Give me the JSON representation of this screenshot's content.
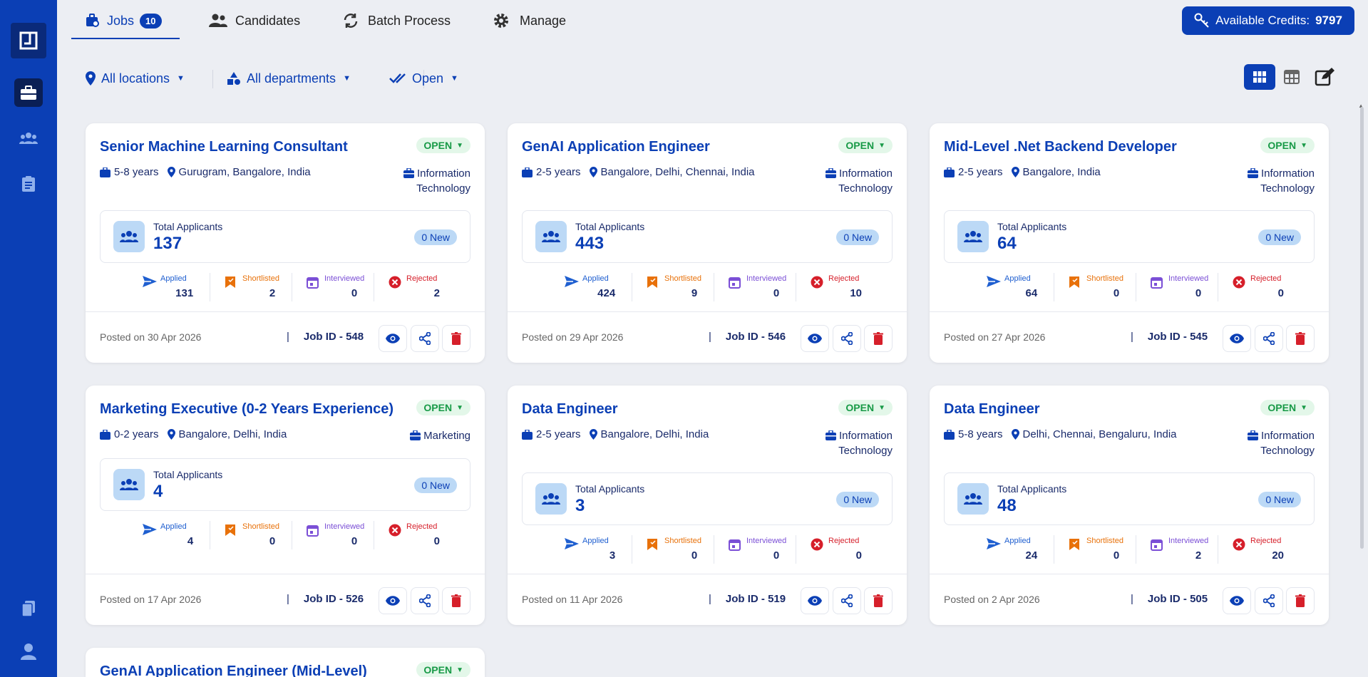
{
  "nav": {
    "tabs": [
      {
        "label": "Jobs",
        "badge": "10"
      },
      {
        "label": "Candidates"
      },
      {
        "label": "Batch Process"
      },
      {
        "label": "Manage"
      }
    ],
    "credits_label": "Available Credits:",
    "credits_value": "9797"
  },
  "filters": {
    "location": "All locations",
    "department": "All departments",
    "status": "Open"
  },
  "stat_labels": {
    "applied": "Applied",
    "shortlisted": "Shortlisted",
    "interviewed": "Interviewed",
    "rejected": "Rejected"
  },
  "total_label": "Total Applicants",
  "colors": {
    "primary": "#0b3fb5",
    "applied": "#1f5fd0",
    "shortlisted": "#e8710a",
    "interviewed": "#7b4fd6",
    "rejected": "#d61f2a",
    "open": "#189a47"
  },
  "jobs": [
    {
      "title": "Senior Machine Learning Consultant",
      "status": "OPEN",
      "experience": "5-8 years",
      "location": "Gurugram, Bangalore, India",
      "department": "Information Technology",
      "total": "137",
      "new": "0 New",
      "applied": "131",
      "shortlisted": "2",
      "interviewed": "0",
      "rejected": "2",
      "posted": "Posted on 30 Apr 2026",
      "job_id": "Job ID - 548"
    },
    {
      "title": "GenAI Application Engineer",
      "status": "OPEN",
      "experience": "2-5 years",
      "location": "Bangalore, Delhi, Chennai, India",
      "department": "Information Technology",
      "total": "443",
      "new": "0 New",
      "applied": "424",
      "shortlisted": "9",
      "interviewed": "0",
      "rejected": "10",
      "posted": "Posted on 29 Apr 2026",
      "job_id": "Job ID - 546"
    },
    {
      "title": "Mid-Level .Net Backend Developer",
      "status": "OPEN",
      "experience": "2-5 years",
      "location": "Bangalore, India",
      "department": "Information Technology",
      "total": "64",
      "new": "0 New",
      "applied": "64",
      "shortlisted": "0",
      "interviewed": "0",
      "rejected": "0",
      "posted": "Posted on 27 Apr 2026",
      "job_id": "Job ID - 545"
    },
    {
      "title": "Marketing Executive (0-2 Years Experience)",
      "status": "OPEN",
      "experience": "0-2 years",
      "location": "Bangalore, Delhi, India",
      "department": "Marketing",
      "total": "4",
      "new": "0 New",
      "applied": "4",
      "shortlisted": "0",
      "interviewed": "0",
      "rejected": "0",
      "posted": "Posted on 17 Apr 2026",
      "job_id": "Job ID - 526"
    },
    {
      "title": "Data Engineer",
      "status": "OPEN",
      "experience": "2-5 years",
      "location": "Bangalore, Delhi, India",
      "department": "Information Technology",
      "total": "3",
      "new": "0 New",
      "applied": "3",
      "shortlisted": "0",
      "interviewed": "0",
      "rejected": "0",
      "posted": "Posted on 11 Apr 2026",
      "job_id": "Job ID - 519"
    },
    {
      "title": "Data Engineer",
      "status": "OPEN",
      "experience": "5-8 years",
      "location": "Delhi, Chennai, Bengaluru, India",
      "department": "Information Technology",
      "total": "48",
      "new": "0 New",
      "applied": "24",
      "shortlisted": "0",
      "interviewed": "2",
      "rejected": "20",
      "posted": "Posted on 2 Apr 2026",
      "job_id": "Job ID - 505"
    },
    {
      "title": "GenAI Application Engineer (Mid-Level)",
      "status": "OPEN"
    }
  ]
}
